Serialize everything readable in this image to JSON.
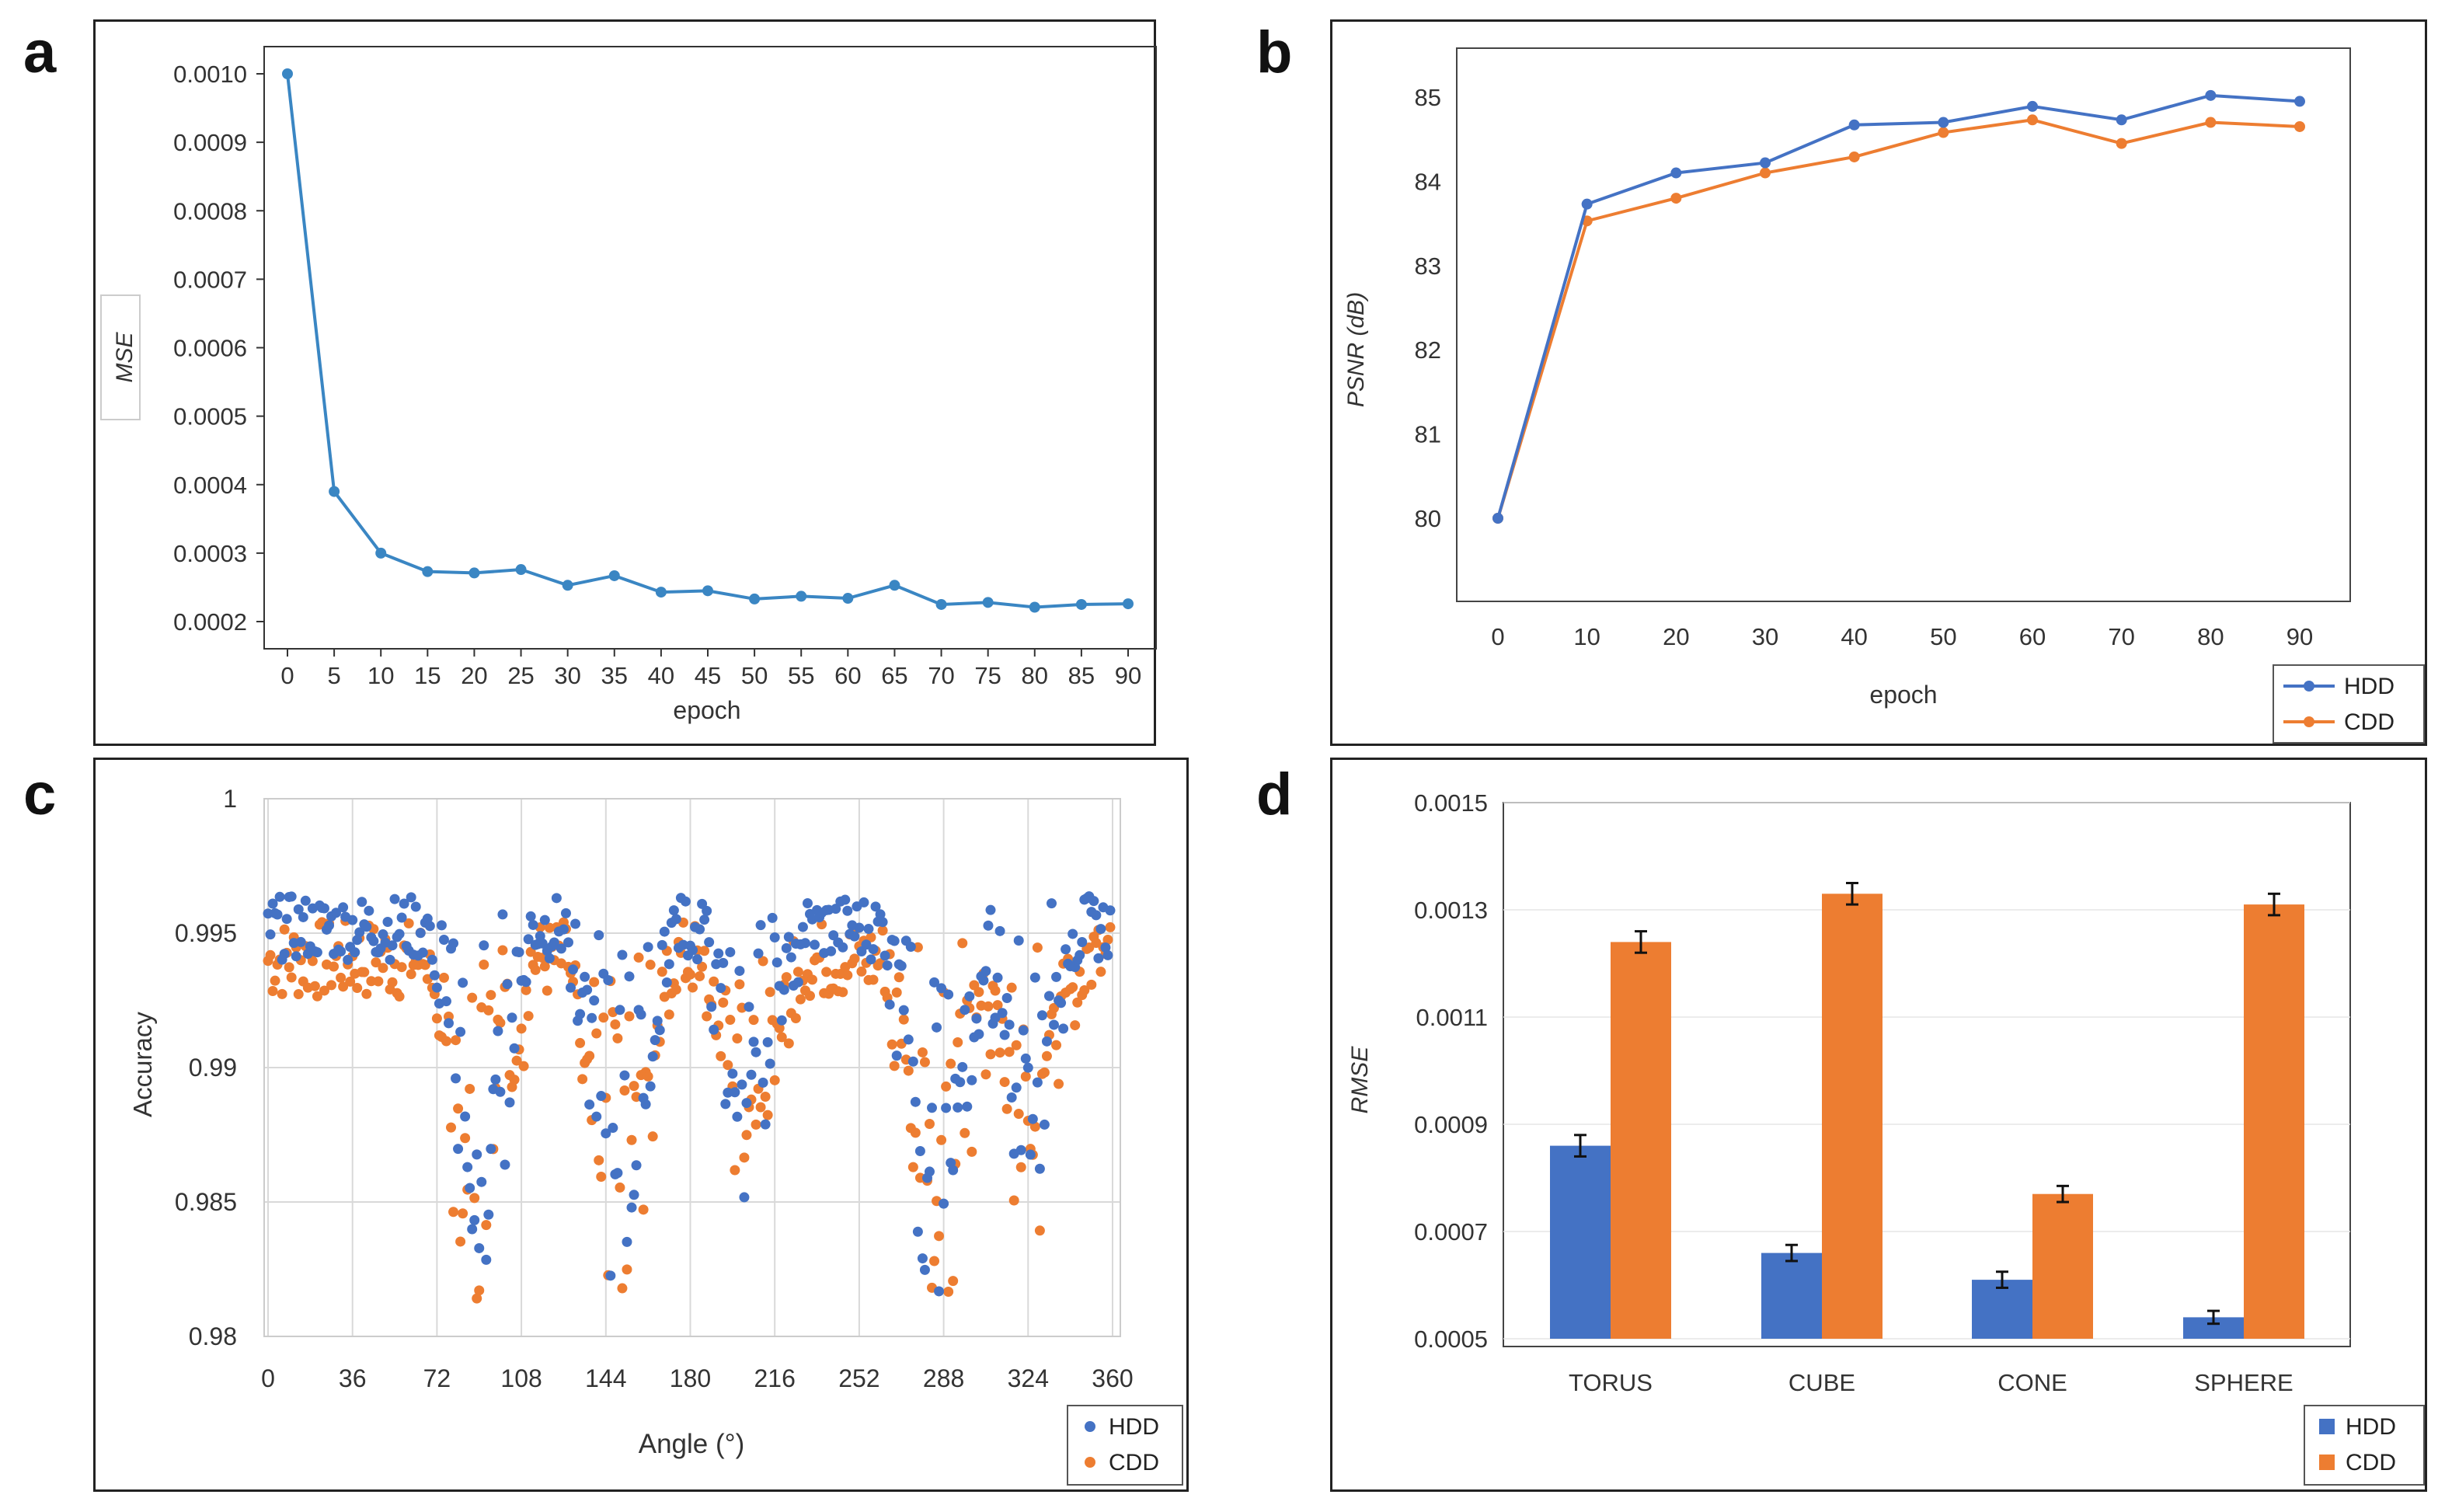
{
  "panels": {
    "a": "a",
    "b": "b",
    "c": "c",
    "d": "d"
  },
  "colors": {
    "hdd": "#4472C4",
    "cdd": "#ED7D31",
    "mse": "#3A86C3",
    "grid": "#d9d9d9"
  },
  "chart_data": [
    {
      "id": "a",
      "type": "line",
      "title": "",
      "xlabel": "epoch",
      "ylabel": "MSE",
      "x": [
        0,
        5,
        10,
        15,
        20,
        25,
        30,
        35,
        40,
        45,
        50,
        55,
        60,
        65,
        70,
        75,
        80,
        85,
        90
      ],
      "series": [
        {
          "name": "MSE",
          "values": [
            0.001,
            0.00039,
            0.0003,
            0.000273,
            0.000271,
            0.000276,
            0.000253,
            0.000267,
            0.000243,
            0.000245,
            0.000233,
            0.000237,
            0.000234,
            0.000253,
            0.000225,
            0.000228,
            0.000221,
            0.000225,
            0.000226
          ]
        }
      ],
      "yticks": [
        "0.0010",
        "0.0009",
        "0.0008",
        "0.0007",
        "0.0006",
        "0.0005",
        "0.0004",
        "0.0003",
        "0.0002"
      ],
      "xticks": [
        "0",
        "5",
        "10",
        "15",
        "20",
        "25",
        "30",
        "35",
        "40",
        "45",
        "50",
        "55",
        "60",
        "65",
        "70",
        "75",
        "80",
        "85",
        "90"
      ],
      "ylim": [
        0.0002,
        0.001
      ]
    },
    {
      "id": "b",
      "type": "line",
      "title": "",
      "xlabel": "epoch",
      "ylabel": "PSNR (dB)",
      "x": [
        0,
        10,
        20,
        30,
        40,
        50,
        60,
        70,
        80,
        90
      ],
      "series": [
        {
          "name": "HDD",
          "values": [
            80.0,
            83.73,
            84.1,
            84.22,
            84.67,
            84.7,
            84.89,
            84.73,
            85.02,
            84.95
          ]
        },
        {
          "name": "CDD",
          "values": [
            80.0,
            83.53,
            83.8,
            84.1,
            84.29,
            84.58,
            84.73,
            84.45,
            84.7,
            84.65
          ]
        }
      ],
      "yticks": [
        "80",
        "81",
        "82",
        "83",
        "84",
        "85"
      ],
      "xticks": [
        "0",
        "10",
        "20",
        "30",
        "40",
        "50",
        "60",
        "70",
        "80",
        "90"
      ],
      "ylim": [
        79.0,
        85.5
      ],
      "legend": "bottom-right"
    },
    {
      "id": "c",
      "type": "scatter",
      "title": "",
      "xlabel": "Angle (°)",
      "ylabel": "Accuracy",
      "series": [
        {
          "name": "HDD"
        },
        {
          "name": "CDD"
        }
      ],
      "xticks": [
        "0",
        "36",
        "72",
        "108",
        "144",
        "180",
        "216",
        "252",
        "288",
        "324",
        "360"
      ],
      "yticks": [
        "1",
        "0.995",
        "0.99",
        "0.985",
        "0.98"
      ],
      "xlim": [
        0,
        360
      ],
      "ylim": [
        0.98,
        1.0
      ],
      "legend": "bottom-right",
      "points_per_series": 360
    },
    {
      "id": "d",
      "type": "bar",
      "title": "",
      "xlabel": "",
      "ylabel": "RMSE",
      "categories": [
        "TORUS",
        "CUBE",
        "CONE",
        "SPHERE"
      ],
      "series": [
        {
          "name": "HDD",
          "values": [
            0.00086,
            0.00066,
            0.00061,
            0.00054
          ],
          "err": [
            2e-05,
            1.5e-05,
            1.5e-05,
            1.2e-05
          ]
        },
        {
          "name": "CDD",
          "values": [
            0.00124,
            0.00133,
            0.00077,
            0.00131
          ],
          "err": [
            2e-05,
            2e-05,
            1.5e-05,
            2e-05
          ]
        }
      ],
      "yticks": [
        "0.0005",
        "0.0007",
        "0.0009",
        "0.0011",
        "0.0013",
        "0.0015"
      ],
      "ylim": [
        0.0005,
        0.0015
      ],
      "legend": "bottom-right"
    }
  ]
}
